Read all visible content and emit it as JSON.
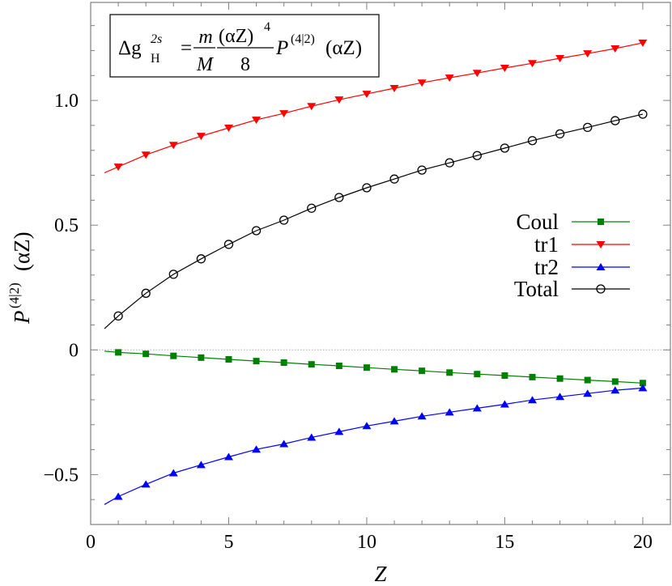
{
  "chart_data": {
    "type": "line",
    "xlabel": "Z",
    "ylabel": {
      "base": "P",
      "sup": "(4|2)",
      "arg": "(αZ)"
    },
    "xlim": [
      0,
      21
    ],
    "ylim": [
      -0.7,
      1.393
    ],
    "xticks": [
      0,
      5,
      10,
      15,
      20
    ],
    "xtick_labels": [
      "0",
      "5",
      "10",
      "15",
      "20"
    ],
    "yticks": [
      -0.5,
      0,
      0.5,
      1.0
    ],
    "ytick_labels": [
      "−0.5",
      "0",
      "0.5",
      "1.0"
    ],
    "zero_line": true,
    "legend_position": "right",
    "annotation": {
      "delta": "Δg",
      "sup": "2s",
      "sub": "H",
      "eq": "=",
      "num1": "m",
      "den1": "M",
      "num2": "(αZ)",
      "num2_sup": "4",
      "den2": "8",
      "P": "P",
      "P_sup": "(4|2)",
      "P_arg": "(αZ)"
    },
    "x": [
      1,
      2,
      3,
      4,
      5,
      6,
      7,
      8,
      9,
      10,
      11,
      12,
      13,
      14,
      15,
      16,
      17,
      18,
      19,
      20
    ],
    "series": [
      {
        "name": "Coul",
        "color": "#008000",
        "marker": "filled-square",
        "line_start": [
          0.5,
          -0.005
        ],
        "values": [
          -0.01,
          -0.016,
          -0.024,
          -0.031,
          -0.038,
          -0.045,
          -0.051,
          -0.058,
          -0.064,
          -0.071,
          -0.078,
          -0.084,
          -0.091,
          -0.097,
          -0.103,
          -0.109,
          -0.115,
          -0.121,
          -0.127,
          -0.133
        ]
      },
      {
        "name": "tr1",
        "color": "#ff0000",
        "marker": "filled-triangle-down",
        "line_start": [
          0.5,
          0.71
        ],
        "values": [
          0.734,
          0.782,
          0.821,
          0.857,
          0.89,
          0.922,
          0.948,
          0.977,
          1.003,
          1.026,
          1.049,
          1.071,
          1.091,
          1.11,
          1.13,
          1.149,
          1.169,
          1.188,
          1.208,
          1.231
        ]
      },
      {
        "name": "tr2",
        "color": "#0000ff",
        "marker": "filled-triangle-up",
        "line_start": [
          0.5,
          -0.62
        ],
        "values": [
          -0.588,
          -0.539,
          -0.494,
          -0.461,
          -0.429,
          -0.399,
          -0.377,
          -0.351,
          -0.328,
          -0.305,
          -0.286,
          -0.266,
          -0.25,
          -0.234,
          -0.218,
          -0.201,
          -0.188,
          -0.175,
          -0.162,
          -0.153
        ]
      },
      {
        "name": "Total",
        "color": "#000000",
        "marker": "open-circle",
        "line_start": [
          0.5,
          0.085
        ],
        "values": [
          0.136,
          0.227,
          0.303,
          0.365,
          0.423,
          0.478,
          0.52,
          0.568,
          0.611,
          0.65,
          0.685,
          0.721,
          0.75,
          0.779,
          0.809,
          0.839,
          0.866,
          0.892,
          0.919,
          0.945
        ]
      }
    ]
  }
}
